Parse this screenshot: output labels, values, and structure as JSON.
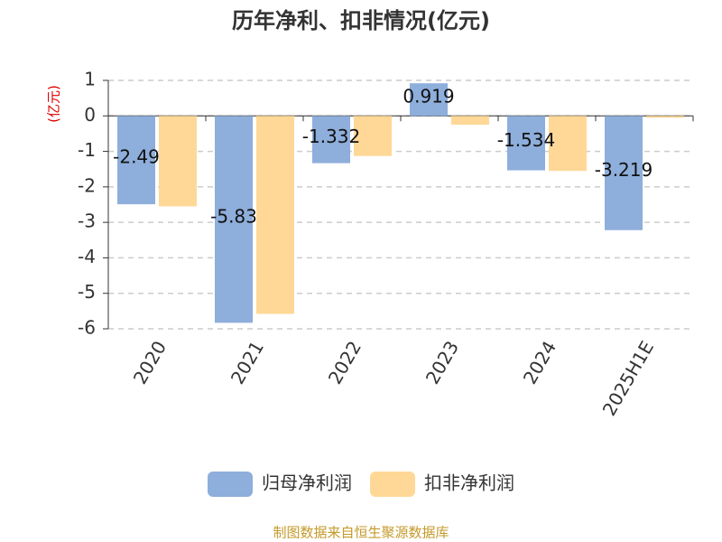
{
  "chart_data": {
    "type": "bar",
    "title": "历年净利、扣非情况(亿元)",
    "y_axis_label": "(亿元)",
    "categories": [
      "2020",
      "2021",
      "2022",
      "2023",
      "2024",
      "2025H1E"
    ],
    "series": [
      {
        "name": "归母净利润",
        "color": "#8eaedb",
        "values": [
          -2.49,
          -5.83,
          -1.332,
          0.919,
          -1.534,
          -3.219
        ]
      },
      {
        "name": "扣非净利润",
        "color": "#ffd897",
        "values": [
          -2.55,
          -5.58,
          -1.13,
          -0.25,
          -1.55,
          -0.05
        ]
      }
    ],
    "ylim": [
      -6,
      1
    ],
    "yticks": [
      -6,
      -5,
      -4,
      -3,
      -2,
      -1,
      0,
      1
    ],
    "grid": true,
    "source": "制图数据来自恒生聚源数据库"
  }
}
